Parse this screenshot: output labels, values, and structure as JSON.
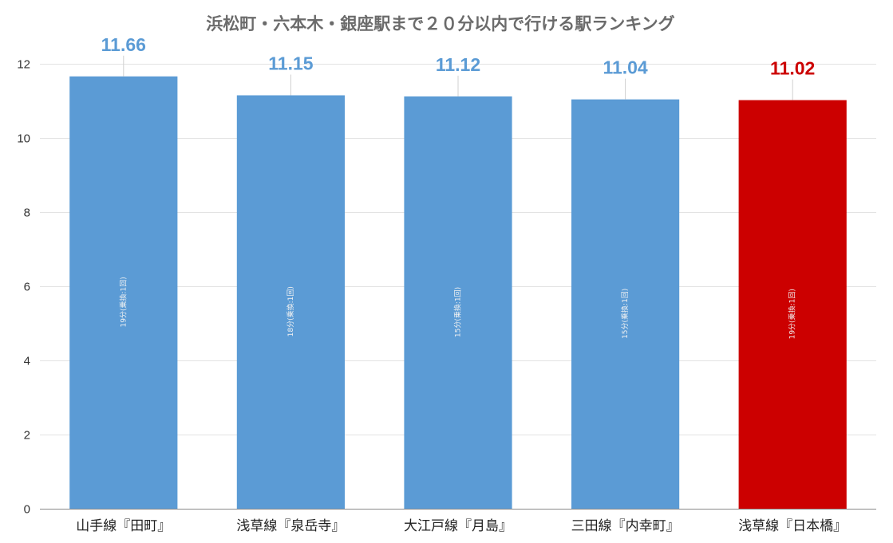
{
  "chart_data": {
    "type": "bar",
    "title": "浜松町・六本木・銀座駅まで２０分以内で行ける駅ランキング",
    "categories": [
      "山手線『田町』",
      "浅草線『泉岳寺』",
      "大江戸線『月島』",
      "三田線『内幸町』",
      "浅草線『日本橋』"
    ],
    "values": [
      11.66,
      11.15,
      11.12,
      11.04,
      11.02
    ],
    "value_labels": [
      "11.66",
      "11.15",
      "11.12",
      "11.04",
      "11.02"
    ],
    "inner_labels": [
      "19分(乗換:1回)",
      "18分(乗換:1回)",
      "15分(乗換:1回)",
      "15分(乗換:1回)",
      "19分(乗換:1回)"
    ],
    "bar_colors": [
      "#5b9bd5",
      "#5b9bd5",
      "#5b9bd5",
      "#5b9bd5",
      "#cc0000"
    ],
    "label_colors": [
      "#5b9bd5",
      "#5b9bd5",
      "#5b9bd5",
      "#5b9bd5",
      "#cc0000"
    ],
    "ylim": [
      0,
      12
    ],
    "yticks": [
      0,
      2,
      4,
      6,
      8,
      10,
      12
    ],
    "grid": true,
    "legend": "none",
    "xlabel": "",
    "ylabel": ""
  }
}
